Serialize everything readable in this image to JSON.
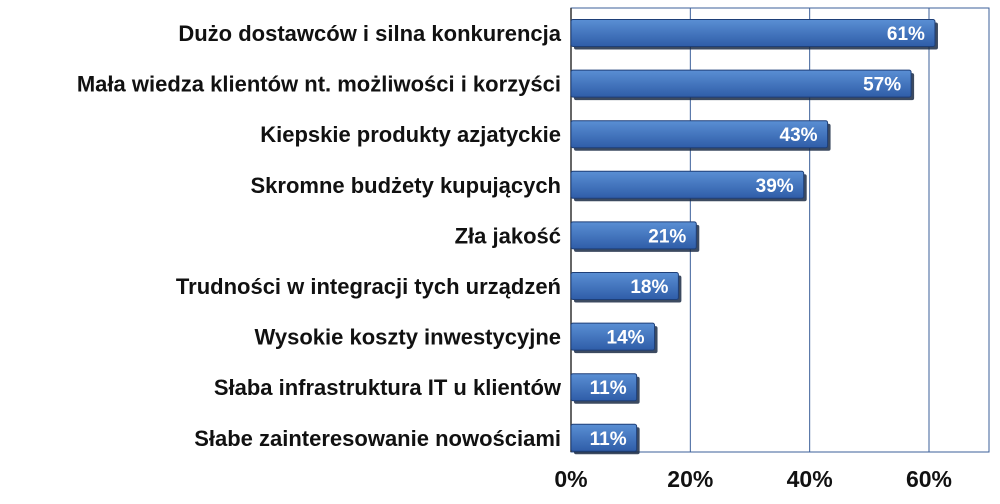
{
  "chart_data": {
    "type": "bar",
    "orientation": "horizontal",
    "categories": [
      "Dużo dostawców i silna konkurencja",
      "Mała wiedza klientów nt. możliwości i korzyści",
      "Kiepskie produkty azjatyckie",
      "Skromne budżety kupujących",
      "Zła jakość",
      "Trudności w integracji tych urządzeń",
      "Wysokie koszty inwestycyjne",
      "Słaba infrastruktura IT u klientów",
      "Słabe zainteresowanie nowościami"
    ],
    "values": [
      61,
      57,
      43,
      39,
      21,
      18,
      14,
      11,
      11
    ],
    "data_labels": [
      "61%",
      "57%",
      "43%",
      "39%",
      "21%",
      "18%",
      "14%",
      "11%",
      "11%"
    ],
    "xlim": [
      0,
      70
    ],
    "x_ticks": [
      0,
      20,
      40,
      60
    ],
    "x_tick_labels": [
      "0%",
      "20%",
      "40%",
      "60%"
    ],
    "grid": "vertical",
    "legend": "none",
    "colors": {
      "bar_top": "#5a8fd4",
      "bar_bottom": "#2f5da8",
      "bar_edge": "#1e3f78",
      "bar_shadow": "#1a2a44",
      "grid": "#3b5f9a"
    }
  }
}
